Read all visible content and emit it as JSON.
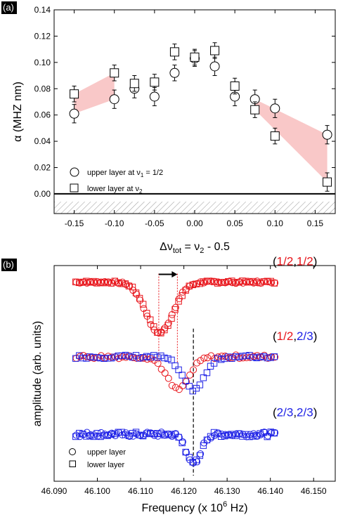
{
  "chart_data": [
    {
      "panel": "(a)",
      "type": "scatter",
      "ylabel": "α (MHZ nm)",
      "xlabel": "Δν_tot = ν_2 - 0.5",
      "xlabel_parts": {
        "a": "Δν",
        "b": "tot",
        "c": " = ν",
        "d": "2",
        "e": " - 0.5"
      },
      "ylabel_parts": {
        "a": "α (MHZ nm)"
      },
      "xlim": [
        -0.175,
        0.175
      ],
      "ylim": [
        -0.015,
        0.14
      ],
      "xticks": [
        -0.15,
        -0.1,
        -0.05,
        0.0,
        0.05,
        0.1,
        0.15
      ],
      "xtick_labels": [
        "-0.15",
        "-0.10",
        "-0.05",
        "0.00",
        "0.05",
        "0.10",
        "0.15"
      ],
      "yticks": [
        0.0,
        0.02,
        0.04,
        0.06,
        0.08,
        0.1,
        0.12,
        0.14
      ],
      "ytick_labels": [
        "0.00",
        "0.02",
        "0.04",
        "0.06",
        "0.08",
        "0.10",
        "0.12",
        "0.14"
      ],
      "grid": false,
      "hatched_region_below": 0.0,
      "legend": {
        "position": "bottom-left",
        "upper": {
          "a": "upper layer at ν",
          "b": "1",
          "c": " = 1/2"
        },
        "lower": {
          "a": "lower layer at ν",
          "b": "2"
        }
      },
      "series": [
        {
          "name": "upper layer at ν1 = 1/2",
          "marker": "circle",
          "points": [
            {
              "x": -0.15,
              "y": 0.061,
              "err": 0.007
            },
            {
              "x": -0.1,
              "y": 0.072,
              "err": 0.007
            },
            {
              "x": -0.075,
              "y": 0.08,
              "err": 0.007
            },
            {
              "x": -0.05,
              "y": 0.074,
              "err": 0.007
            },
            {
              "x": -0.025,
              "y": 0.092,
              "err": 0.006
            },
            {
              "x": 0.0,
              "y": 0.103,
              "err": 0.006
            },
            {
              "x": 0.025,
              "y": 0.097,
              "err": 0.007
            },
            {
              "x": 0.05,
              "y": 0.074,
              "err": 0.007
            },
            {
              "x": 0.075,
              "y": 0.072,
              "err": 0.007
            },
            {
              "x": 0.1,
              "y": 0.065,
              "err": 0.007
            },
            {
              "x": 0.165,
              "y": 0.045,
              "err": 0.007
            }
          ]
        },
        {
          "name": "lower layer at ν2",
          "marker": "square",
          "points": [
            {
              "x": -0.15,
              "y": 0.076,
              "err": 0.006
            },
            {
              "x": -0.1,
              "y": 0.092,
              "err": 0.006
            },
            {
              "x": -0.075,
              "y": 0.084,
              "err": 0.006
            },
            {
              "x": -0.05,
              "y": 0.085,
              "err": 0.006
            },
            {
              "x": -0.025,
              "y": 0.108,
              "err": 0.006
            },
            {
              "x": 0.0,
              "y": 0.104,
              "err": 0.006
            },
            {
              "x": 0.025,
              "y": 0.109,
              "err": 0.006
            },
            {
              "x": 0.05,
              "y": 0.082,
              "err": 0.006
            },
            {
              "x": 0.075,
              "y": 0.064,
              "err": 0.006
            },
            {
              "x": 0.1,
              "y": 0.044,
              "err": 0.006
            },
            {
              "x": 0.165,
              "y": 0.009,
              "err": 0.007
            }
          ]
        }
      ],
      "shaded_bands": [
        {
          "x0": -0.15,
          "x1": -0.1,
          "top": [
            0.076,
            0.092
          ],
          "bottom": [
            0.061,
            0.072
          ],
          "color": "#f7b6b6"
        },
        {
          "x0": 0.075,
          "x1": 0.165,
          "top": [
            0.072,
            0.045
          ],
          "bottom": [
            0.064,
            0.009
          ],
          "color": "#f7b6b6"
        }
      ]
    },
    {
      "panel": "(b)",
      "type": "scatter",
      "ylabel": "amplitude (arb. units)",
      "xlabel": "Frequency (x 10^6 Hz)",
      "xlabel_parts": {
        "a": "Frequency (x 10",
        "b": "6",
        "c": " Hz)"
      },
      "xlim": [
        46.09,
        46.155
      ],
      "xticks": [
        46.09,
        46.1,
        46.11,
        46.12,
        46.13,
        46.14,
        46.15
      ],
      "xtick_labels": [
        "46.090",
        "46.100",
        "46.110",
        "46.120",
        "46.130",
        "46.140",
        "46.150"
      ],
      "colors": {
        "upper": "#e8151b",
        "lower": "#1f22e6"
      },
      "legend": {
        "position": "bottom-left",
        "upper": "upper layer",
        "lower": "lower layer"
      },
      "arrow": {
        "from": 46.1142,
        "to": 46.1185
      },
      "dotted_lines": [
        46.1142,
        46.1185
      ],
      "dashed_line": 46.1222,
      "traces": [
        {
          "label_parts": [
            "(",
            "1/2",
            ",",
            "1/2",
            ")"
          ],
          "label_colors": [
            "#000000",
            "#e8151b",
            "#000000",
            "#e8151b",
            "#000000"
          ],
          "baseline": 3.1,
          "depth": 0.85,
          "sigma": 0.0031,
          "upper": {
            "center": 46.1142,
            "color": "#e8151b"
          },
          "lower": {
            "center": 46.1145,
            "color": "#e8151b"
          },
          "noise": 0.04
        },
        {
          "label_parts": [
            "(",
            "1/2",
            ",",
            "2/3",
            ")"
          ],
          "label_colors": [
            "#000000",
            "#e8151b",
            "#000000",
            "#1f22e6",
            "#000000"
          ],
          "baseline": 1.85,
          "depth": 0.55,
          "sigma": 0.0026,
          "upper": {
            "center": 46.1185,
            "color": "#e8151b"
          },
          "lower": {
            "center": 46.1222,
            "color": "#1f22e6"
          },
          "noise": 0.06
        },
        {
          "label_parts": [
            "(",
            "2/3",
            ",",
            "2/3",
            ")"
          ],
          "label_colors": [
            "#000000",
            "#1f22e6",
            "#000000",
            "#1f22e6",
            "#000000"
          ],
          "baseline": 0.55,
          "depth": 0.5,
          "sigma": 0.0016,
          "upper": {
            "center": 46.1222,
            "color": "#1f22e6"
          },
          "lower": {
            "center": 46.1222,
            "color": "#1f22e6"
          },
          "noise": 0.08
        }
      ],
      "x_samples": {
        "start": 46.095,
        "end": 46.141,
        "step": 0.00082
      }
    }
  ]
}
